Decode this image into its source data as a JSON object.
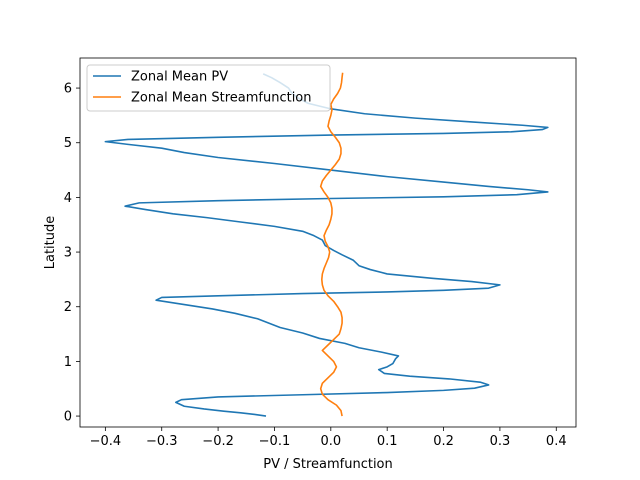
{
  "chart_data": {
    "type": "line",
    "xlabel": "PV / Streamfunction",
    "ylabel": "Latitude",
    "xlim": [
      -0.445,
      0.435
    ],
    "ylim": [
      -0.2,
      6.55
    ],
    "xticks": [
      -0.4,
      -0.3,
      -0.2,
      -0.1,
      0.0,
      0.1,
      0.2,
      0.3,
      0.4
    ],
    "xtick_labels": [
      "−0.4",
      "−0.3",
      "−0.2",
      "−0.1",
      "0.0",
      "0.1",
      "0.2",
      "0.3",
      "0.4"
    ],
    "yticks": [
      0,
      1,
      2,
      3,
      4,
      5,
      6
    ],
    "ytick_labels": [
      "0",
      "1",
      "2",
      "3",
      "4",
      "5",
      "6"
    ],
    "grid": false,
    "legend_position": "upper-left",
    "series": [
      {
        "name": "Zonal Mean PV",
        "color": "#1f77b4",
        "points": [
          [
            -0.115,
            0.0
          ],
          [
            -0.135,
            0.03
          ],
          [
            -0.16,
            0.06
          ],
          [
            -0.19,
            0.09
          ],
          [
            -0.225,
            0.13
          ],
          [
            -0.26,
            0.18
          ],
          [
            -0.275,
            0.25
          ],
          [
            -0.265,
            0.3
          ],
          [
            -0.2,
            0.35
          ],
          [
            -0.05,
            0.39
          ],
          [
            0.1,
            0.43
          ],
          [
            0.2,
            0.47
          ],
          [
            0.255,
            0.51
          ],
          [
            0.28,
            0.57
          ],
          [
            0.265,
            0.62
          ],
          [
            0.21,
            0.68
          ],
          [
            0.14,
            0.73
          ],
          [
            0.095,
            0.78
          ],
          [
            0.085,
            0.85
          ],
          [
            0.1,
            0.9
          ],
          [
            0.11,
            0.96
          ],
          [
            0.115,
            1.05
          ],
          [
            0.12,
            1.1
          ],
          [
            0.09,
            1.17
          ],
          [
            0.05,
            1.25
          ],
          [
            0.025,
            1.33
          ],
          [
            -0.02,
            1.42
          ],
          [
            -0.05,
            1.52
          ],
          [
            -0.09,
            1.62
          ],
          [
            -0.11,
            1.7
          ],
          [
            -0.13,
            1.78
          ],
          [
            -0.17,
            1.88
          ],
          [
            -0.21,
            1.96
          ],
          [
            -0.26,
            2.04
          ],
          [
            -0.31,
            2.12
          ],
          [
            -0.3,
            2.17
          ],
          [
            -0.2,
            2.2
          ],
          [
            -0.05,
            2.24
          ],
          [
            0.1,
            2.27
          ],
          [
            0.2,
            2.3
          ],
          [
            0.28,
            2.34
          ],
          [
            0.3,
            2.4
          ],
          [
            0.25,
            2.46
          ],
          [
            0.18,
            2.52
          ],
          [
            0.1,
            2.6
          ],
          [
            0.07,
            2.68
          ],
          [
            0.05,
            2.75
          ],
          [
            0.04,
            2.85
          ],
          [
            0.02,
            2.95
          ],
          [
            0.005,
            3.03
          ],
          [
            -0.01,
            3.12
          ],
          [
            -0.015,
            3.22
          ],
          [
            -0.03,
            3.3
          ],
          [
            -0.05,
            3.38
          ],
          [
            -0.1,
            3.47
          ],
          [
            -0.16,
            3.55
          ],
          [
            -0.22,
            3.63
          ],
          [
            -0.28,
            3.7
          ],
          [
            -0.33,
            3.78
          ],
          [
            -0.365,
            3.84
          ],
          [
            -0.34,
            3.9
          ],
          [
            -0.2,
            3.94
          ],
          [
            0.0,
            3.98
          ],
          [
            0.2,
            4.01
          ],
          [
            0.33,
            4.05
          ],
          [
            0.385,
            4.1
          ],
          [
            0.35,
            4.14
          ],
          [
            0.28,
            4.2
          ],
          [
            0.2,
            4.28
          ],
          [
            0.1,
            4.38
          ],
          [
            0.0,
            4.5
          ],
          [
            -0.1,
            4.62
          ],
          [
            -0.2,
            4.73
          ],
          [
            -0.26,
            4.82
          ],
          [
            -0.3,
            4.9
          ],
          [
            -0.36,
            4.97
          ],
          [
            -0.4,
            5.02
          ],
          [
            -0.36,
            5.06
          ],
          [
            -0.2,
            5.1
          ],
          [
            0.0,
            5.14
          ],
          [
            0.2,
            5.17
          ],
          [
            0.32,
            5.2
          ],
          [
            0.375,
            5.24
          ],
          [
            0.385,
            5.28
          ],
          [
            0.34,
            5.32
          ],
          [
            0.25,
            5.38
          ],
          [
            0.15,
            5.45
          ],
          [
            0.06,
            5.53
          ],
          [
            0.0,
            5.62
          ],
          [
            -0.04,
            5.72
          ],
          [
            -0.06,
            5.83
          ],
          [
            -0.07,
            5.92
          ],
          [
            -0.075,
            6.0
          ],
          [
            -0.09,
            6.1
          ],
          [
            -0.105,
            6.19
          ],
          [
            -0.12,
            6.26
          ]
        ]
      },
      {
        "name": "Zonal Mean Streamfunction",
        "color": "#ff7f0e",
        "points": [
          [
            0.02,
            0.0
          ],
          [
            0.018,
            0.1
          ],
          [
            0.01,
            0.2
          ],
          [
            -0.005,
            0.3
          ],
          [
            -0.015,
            0.4
          ],
          [
            -0.018,
            0.5
          ],
          [
            -0.015,
            0.6
          ],
          [
            -0.005,
            0.7
          ],
          [
            0.005,
            0.8
          ],
          [
            0.01,
            0.9
          ],
          [
            0.005,
            1.0
          ],
          [
            -0.005,
            1.1
          ],
          [
            -0.015,
            1.2
          ],
          [
            -0.005,
            1.3
          ],
          [
            0.005,
            1.4
          ],
          [
            0.015,
            1.5
          ],
          [
            0.018,
            1.6
          ],
          [
            0.02,
            1.7
          ],
          [
            0.02,
            1.8
          ],
          [
            0.018,
            1.9
          ],
          [
            0.012,
            2.0
          ],
          [
            0.005,
            2.1
          ],
          [
            -0.005,
            2.2
          ],
          [
            -0.012,
            2.3
          ],
          [
            -0.015,
            2.4
          ],
          [
            -0.016,
            2.5
          ],
          [
            -0.015,
            2.6
          ],
          [
            -0.012,
            2.7
          ],
          [
            -0.008,
            2.8
          ],
          [
            -0.004,
            2.9
          ],
          [
            -0.002,
            3.0
          ],
          [
            -0.005,
            3.1
          ],
          [
            -0.01,
            3.2
          ],
          [
            -0.012,
            3.3
          ],
          [
            -0.008,
            3.4
          ],
          [
            -0.003,
            3.5
          ],
          [
            0.0,
            3.6
          ],
          [
            0.002,
            3.7
          ],
          [
            0.002,
            3.8
          ],
          [
            0.0,
            3.9
          ],
          [
            -0.005,
            4.0
          ],
          [
            -0.012,
            4.1
          ],
          [
            -0.018,
            4.2
          ],
          [
            -0.015,
            4.3
          ],
          [
            -0.008,
            4.4
          ],
          [
            0.0,
            4.5
          ],
          [
            0.008,
            4.6
          ],
          [
            0.015,
            4.7
          ],
          [
            0.018,
            4.8
          ],
          [
            0.018,
            4.9
          ],
          [
            0.015,
            5.0
          ],
          [
            0.008,
            5.1
          ],
          [
            0.0,
            5.2
          ],
          [
            -0.005,
            5.3
          ],
          [
            -0.003,
            5.4
          ],
          [
            0.0,
            5.5
          ],
          [
            0.002,
            5.6
          ],
          [
            0.0,
            5.7
          ],
          [
            0.005,
            5.8
          ],
          [
            0.012,
            5.9
          ],
          [
            0.017,
            6.0
          ],
          [
            0.019,
            6.1
          ],
          [
            0.02,
            6.2
          ],
          [
            0.021,
            6.28
          ]
        ]
      }
    ]
  }
}
